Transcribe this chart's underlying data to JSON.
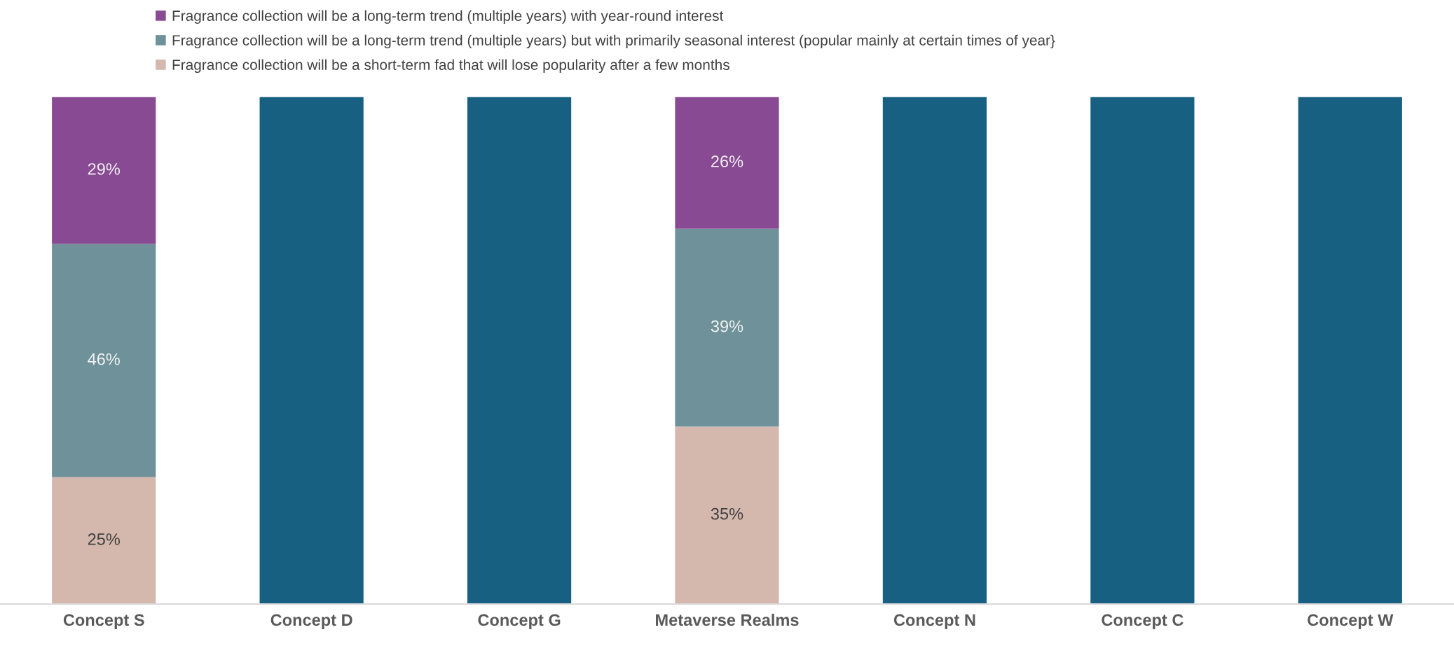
{
  "chart_data": {
    "type": "bar",
    "stacked": true,
    "data_labels": false,
    "legend": "top",
    "grid": false,
    "categories": [
      "Concept S",
      "Concept D",
      "Concept G",
      "Metaverse Realms",
      "Concept N",
      "Concept C",
      "Concept W"
    ],
    "series": [
      {
        "name": "Fragrance collection will be a short-term fad that will lose popularity after a few months",
        "color": "#d5b8ad",
        "values": [
          25,
          null,
          null,
          35,
          null,
          null,
          null
        ],
        "value_labels": [
          "25%",
          null,
          null,
          "35%",
          null,
          null,
          null
        ]
      },
      {
        "name": "Fragrance collection will be a long-term trend (multiple years) but with primarily seasonal interest (popular mainly at certain times of year}",
        "color": "#6e919a",
        "values": [
          46,
          null,
          null,
          39,
          null,
          null,
          null
        ],
        "value_labels": [
          "46%",
          null,
          null,
          "39%",
          null,
          null,
          null
        ]
      },
      {
        "name": "Fragrance collection will be a long-term trend (multiple years) with year-round interest",
        "color": "#884a92",
        "values": [
          29,
          null,
          null,
          26,
          null,
          null,
          null
        ],
        "value_labels": [
          "29%",
          null,
          null,
          "26%",
          null,
          null,
          null
        ]
      },
      {
        "color": "#176082",
        "values": [
          null,
          100,
          100,
          null,
          100,
          100,
          100
        ]
      }
    ]
  }
}
